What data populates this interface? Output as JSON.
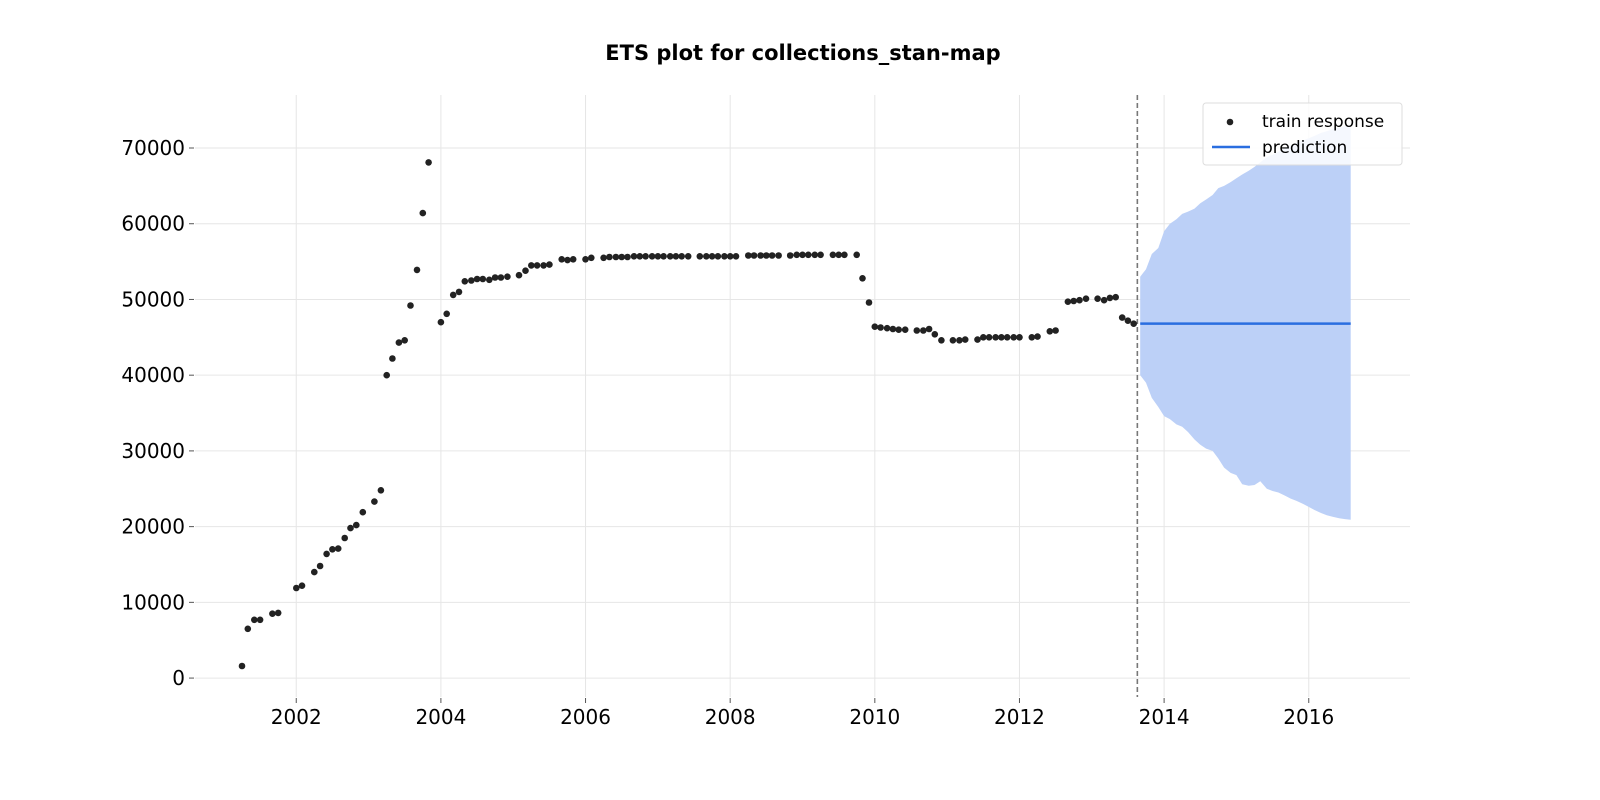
{
  "chart_data": {
    "type": "scatter",
    "title": "ETS plot for collections_stan-map",
    "xlabel": "",
    "ylabel": "",
    "xlim": [
      2000.6,
      2017.4
    ],
    "ylim": [
      -2500,
      77000
    ],
    "x_ticks": [
      2002,
      2004,
      2006,
      2008,
      2010,
      2012,
      2014,
      2016
    ],
    "y_ticks": [
      0,
      10000,
      20000,
      30000,
      40000,
      50000,
      60000,
      70000
    ],
    "grid": true,
    "legend_position": "top-right",
    "colors": {
      "points": "#222222",
      "prediction": "#2a6ee0",
      "band": "#bcd0f7",
      "vline": "#777777",
      "grid": "#e6e6e6"
    },
    "series": [
      {
        "name": "train response",
        "kind": "scatter",
        "points": [
          [
            2001.25,
            1600
          ],
          [
            2001.33,
            6500
          ],
          [
            2001.42,
            7700
          ],
          [
            2001.5,
            7700
          ],
          [
            2001.67,
            8500
          ],
          [
            2001.75,
            8600
          ],
          [
            2002.0,
            11900
          ],
          [
            2002.08,
            12200
          ],
          [
            2002.25,
            14000
          ],
          [
            2002.33,
            14800
          ],
          [
            2002.42,
            16400
          ],
          [
            2002.5,
            17000
          ],
          [
            2002.58,
            17100
          ],
          [
            2002.67,
            18500
          ],
          [
            2002.75,
            19800
          ],
          [
            2002.83,
            20200
          ],
          [
            2002.92,
            21900
          ],
          [
            2003.08,
            23300
          ],
          [
            2003.17,
            24800
          ],
          [
            2003.25,
            40000
          ],
          [
            2003.33,
            42200
          ],
          [
            2003.42,
            44300
          ],
          [
            2003.5,
            44600
          ],
          [
            2003.58,
            49200
          ],
          [
            2003.67,
            53900
          ],
          [
            2003.75,
            61400
          ],
          [
            2003.83,
            68100
          ],
          [
            2004.0,
            47000
          ],
          [
            2004.08,
            48100
          ],
          [
            2004.17,
            50600
          ],
          [
            2004.25,
            51000
          ],
          [
            2004.33,
            52400
          ],
          [
            2004.42,
            52500
          ],
          [
            2004.5,
            52700
          ],
          [
            2004.58,
            52700
          ],
          [
            2004.67,
            52600
          ],
          [
            2004.75,
            52900
          ],
          [
            2004.83,
            52900
          ],
          [
            2004.92,
            53000
          ],
          [
            2005.08,
            53200
          ],
          [
            2005.17,
            53800
          ],
          [
            2005.25,
            54500
          ],
          [
            2005.33,
            54500
          ],
          [
            2005.42,
            54500
          ],
          [
            2005.5,
            54600
          ],
          [
            2005.67,
            55300
          ],
          [
            2005.75,
            55200
          ],
          [
            2005.83,
            55300
          ],
          [
            2006.0,
            55300
          ],
          [
            2006.08,
            55500
          ],
          [
            2006.25,
            55500
          ],
          [
            2006.33,
            55600
          ],
          [
            2006.42,
            55600
          ],
          [
            2006.5,
            55600
          ],
          [
            2006.58,
            55600
          ],
          [
            2006.67,
            55700
          ],
          [
            2006.75,
            55700
          ],
          [
            2006.83,
            55700
          ],
          [
            2006.92,
            55700
          ],
          [
            2007.0,
            55700
          ],
          [
            2007.08,
            55700
          ],
          [
            2007.17,
            55700
          ],
          [
            2007.25,
            55700
          ],
          [
            2007.33,
            55700
          ],
          [
            2007.42,
            55700
          ],
          [
            2007.58,
            55700
          ],
          [
            2007.67,
            55700
          ],
          [
            2007.75,
            55700
          ],
          [
            2007.83,
            55700
          ],
          [
            2007.92,
            55700
          ],
          [
            2008.0,
            55700
          ],
          [
            2008.08,
            55700
          ],
          [
            2008.25,
            55800
          ],
          [
            2008.33,
            55800
          ],
          [
            2008.42,
            55800
          ],
          [
            2008.5,
            55800
          ],
          [
            2008.58,
            55800
          ],
          [
            2008.67,
            55800
          ],
          [
            2008.83,
            55800
          ],
          [
            2008.92,
            55900
          ],
          [
            2009.0,
            55900
          ],
          [
            2009.08,
            55900
          ],
          [
            2009.17,
            55900
          ],
          [
            2009.25,
            55900
          ],
          [
            2009.42,
            55900
          ],
          [
            2009.5,
            55900
          ],
          [
            2009.58,
            55900
          ],
          [
            2009.75,
            55900
          ],
          [
            2009.83,
            52800
          ],
          [
            2009.92,
            49600
          ],
          [
            2010.0,
            46400
          ],
          [
            2010.08,
            46300
          ],
          [
            2010.17,
            46200
          ],
          [
            2010.25,
            46100
          ],
          [
            2010.33,
            46000
          ],
          [
            2010.42,
            46000
          ],
          [
            2010.58,
            45900
          ],
          [
            2010.67,
            45900
          ],
          [
            2010.75,
            46100
          ],
          [
            2010.83,
            45400
          ],
          [
            2010.92,
            44600
          ],
          [
            2011.08,
            44600
          ],
          [
            2011.17,
            44600
          ],
          [
            2011.25,
            44700
          ],
          [
            2011.42,
            44700
          ],
          [
            2011.5,
            45000
          ],
          [
            2011.58,
            45000
          ],
          [
            2011.67,
            45000
          ],
          [
            2011.75,
            45000
          ],
          [
            2011.83,
            45000
          ],
          [
            2011.92,
            45000
          ],
          [
            2012.0,
            45000
          ],
          [
            2012.17,
            45000
          ],
          [
            2012.25,
            45100
          ],
          [
            2012.42,
            45800
          ],
          [
            2012.5,
            45900
          ],
          [
            2012.67,
            49700
          ],
          [
            2012.75,
            49800
          ],
          [
            2012.83,
            49900
          ],
          [
            2012.92,
            50100
          ],
          [
            2013.08,
            50100
          ],
          [
            2013.17,
            49900
          ],
          [
            2013.25,
            50200
          ],
          [
            2013.33,
            50300
          ],
          [
            2013.42,
            47600
          ],
          [
            2013.5,
            47200
          ],
          [
            2013.58,
            46800
          ]
        ]
      },
      {
        "name": "prediction",
        "kind": "line",
        "points": [
          [
            2013.67,
            46800
          ],
          [
            2016.58,
            46800
          ]
        ]
      }
    ],
    "confidence_band": {
      "x": [
        2013.67,
        2013.75,
        2013.83,
        2013.92,
        2014.0,
        2014.08,
        2014.17,
        2014.25,
        2014.33,
        2014.42,
        2014.5,
        2014.58,
        2014.67,
        2014.75,
        2014.83,
        2014.92,
        2015.0,
        2015.08,
        2015.17,
        2015.25,
        2015.33,
        2015.42,
        2015.5,
        2015.58,
        2015.67,
        2015.75,
        2015.83,
        2015.92,
        2016.0,
        2016.08,
        2016.17,
        2016.25,
        2016.33,
        2016.42,
        2016.5,
        2016.58
      ],
      "upper": [
        53000,
        54000,
        56000,
        56800,
        59000,
        60000,
        60600,
        61300,
        61600,
        62000,
        62700,
        63200,
        63800,
        64700,
        65000,
        65500,
        66000,
        66500,
        67000,
        67500,
        68100,
        68800,
        69100,
        69500,
        70000,
        70300,
        70700,
        71000,
        71300,
        71600,
        72000,
        72200,
        72500,
        72700,
        72900,
        73000
      ],
      "lower": [
        40000,
        39000,
        37000,
        35800,
        34600,
        34200,
        33500,
        33200,
        32500,
        31500,
        30800,
        30300,
        30000,
        29000,
        27800,
        27100,
        26800,
        25600,
        25400,
        25500,
        26000,
        25000,
        24700,
        24500,
        24100,
        23700,
        23400,
        23000,
        22600,
        22200,
        21800,
        21500,
        21300,
        21100,
        21000,
        20900
      ]
    },
    "vline_x": 2013.63
  }
}
